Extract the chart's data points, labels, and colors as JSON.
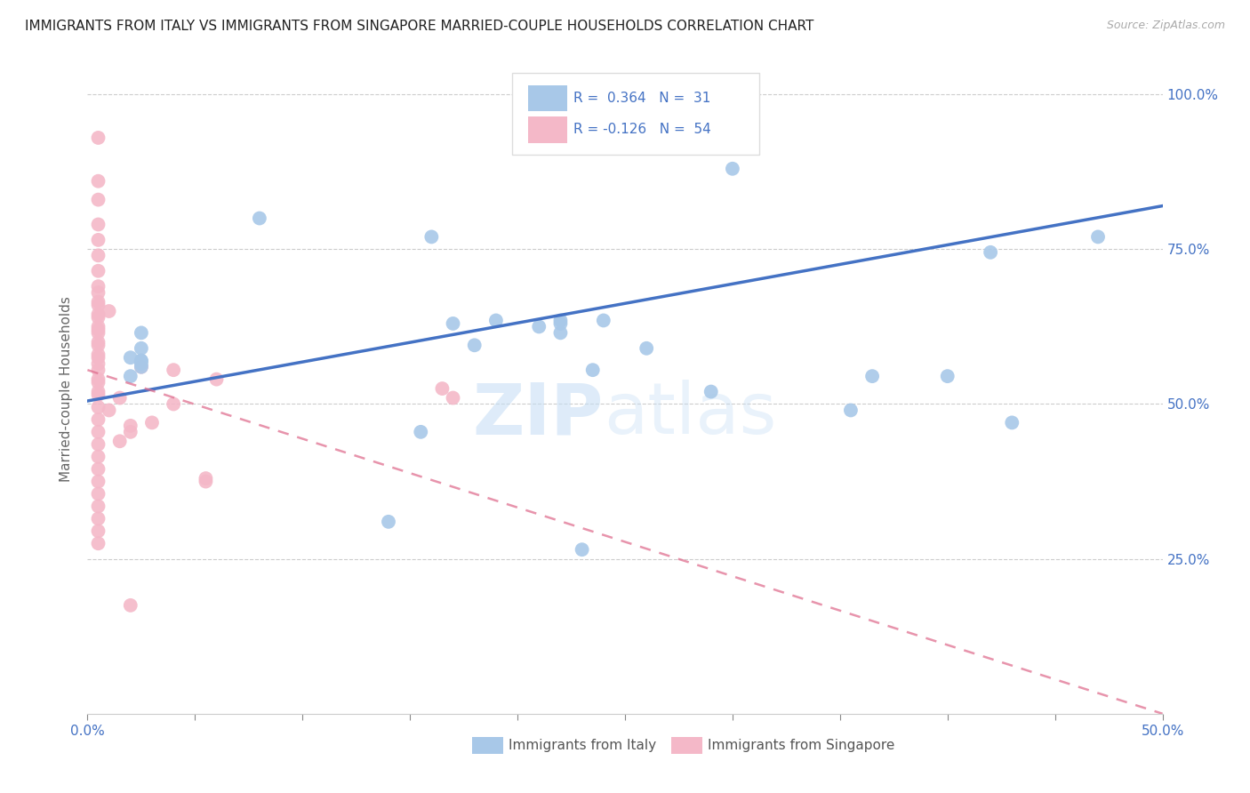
{
  "title": "IMMIGRANTS FROM ITALY VS IMMIGRANTS FROM SINGAPORE MARRIED-COUPLE HOUSEHOLDS CORRELATION CHART",
  "source": "Source: ZipAtlas.com",
  "ylabel": "Married-couple Households",
  "xlim": [
    0.0,
    0.5
  ],
  "ylim": [
    0.0,
    1.05
  ],
  "xtick_values": [
    0.0,
    0.05,
    0.1,
    0.15,
    0.2,
    0.25,
    0.3,
    0.35,
    0.4,
    0.45,
    0.5
  ],
  "xtick_labels_show": {
    "0.0": "0.0%",
    "0.5": "50.0%"
  },
  "ytick_values": [
    0.25,
    0.5,
    0.75,
    1.0
  ],
  "ytick_labels": [
    "25.0%",
    "50.0%",
    "75.0%",
    "100.0%"
  ],
  "legend_labels": [
    "Immigrants from Italy",
    "Immigrants from Singapore"
  ],
  "italy_R": 0.364,
  "italy_N": 31,
  "singapore_R": -0.126,
  "singapore_N": 54,
  "watermark_zip": "ZIP",
  "watermark_atlas": "atlas",
  "italy_color": "#a8c8e8",
  "italy_line_color": "#4472c4",
  "singapore_color": "#f4b8c8",
  "singapore_line_color": "#e07090",
  "italy_line_x0": 0.0,
  "italy_line_y0": 0.505,
  "italy_line_x1": 0.5,
  "italy_line_y1": 0.82,
  "singapore_line_x0": 0.0,
  "singapore_line_y0": 0.555,
  "singapore_line_x1": 0.5,
  "singapore_line_y1": 0.0,
  "italy_scatter_x": [
    0.3,
    0.08,
    0.16,
    0.17,
    0.19,
    0.18,
    0.21,
    0.22,
    0.22,
    0.155,
    0.24,
    0.235,
    0.22,
    0.26,
    0.29,
    0.355,
    0.365,
    0.43,
    0.47,
    0.4,
    0.14,
    0.23,
    0.42,
    0.02,
    0.02,
    0.025,
    0.025,
    0.025,
    0.025,
    0.025,
    0.025
  ],
  "italy_scatter_y": [
    0.88,
    0.8,
    0.77,
    0.63,
    0.635,
    0.595,
    0.625,
    0.635,
    0.615,
    0.455,
    0.635,
    0.555,
    0.63,
    0.59,
    0.52,
    0.49,
    0.545,
    0.47,
    0.77,
    0.545,
    0.31,
    0.265,
    0.745,
    0.575,
    0.545,
    0.615,
    0.59,
    0.57,
    0.57,
    0.565,
    0.56
  ],
  "singapore_scatter_x": [
    0.005,
    0.005,
    0.005,
    0.005,
    0.005,
    0.005,
    0.005,
    0.005,
    0.005,
    0.005,
    0.005,
    0.005,
    0.005,
    0.005,
    0.005,
    0.005,
    0.005,
    0.005,
    0.005,
    0.005,
    0.005,
    0.005,
    0.005,
    0.005,
    0.005,
    0.005,
    0.005,
    0.005,
    0.005,
    0.005,
    0.005,
    0.005,
    0.005,
    0.005,
    0.005,
    0.005,
    0.005,
    0.005,
    0.01,
    0.01,
    0.015,
    0.015,
    0.02,
    0.025,
    0.03,
    0.04,
    0.04,
    0.055,
    0.055,
    0.06,
    0.165,
    0.17,
    0.02,
    0.02
  ],
  "singapore_scatter_y": [
    0.93,
    0.86,
    0.83,
    0.79,
    0.765,
    0.74,
    0.715,
    0.69,
    0.665,
    0.64,
    0.62,
    0.595,
    0.575,
    0.555,
    0.535,
    0.515,
    0.495,
    0.475,
    0.455,
    0.435,
    0.415,
    0.395,
    0.375,
    0.355,
    0.335,
    0.315,
    0.295,
    0.275,
    0.565,
    0.58,
    0.6,
    0.615,
    0.625,
    0.645,
    0.66,
    0.68,
    0.52,
    0.54,
    0.65,
    0.49,
    0.51,
    0.44,
    0.455,
    0.56,
    0.47,
    0.5,
    0.555,
    0.375,
    0.38,
    0.54,
    0.525,
    0.51,
    0.175,
    0.465
  ]
}
